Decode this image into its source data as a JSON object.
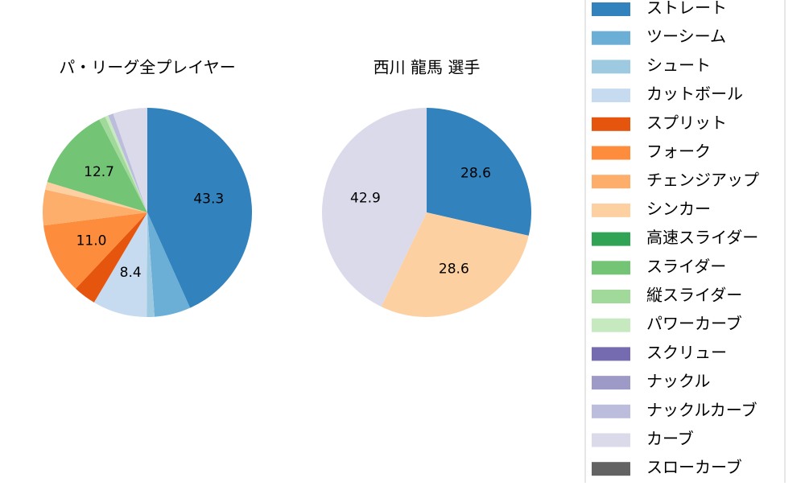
{
  "chart_data": [
    {
      "type": "pie",
      "title": "パ・リーグ全プレイヤー",
      "categories": [
        "ストレート",
        "ツーシーム",
        "シュート",
        "カットボール",
        "スプリット",
        "フォーク",
        "チェンジアップ",
        "シンカー",
        "高速スライダー",
        "スライダー",
        "縦スライダー",
        "パワーカーブ",
        "スクリュー",
        "ナックル",
        "ナックルカーブ",
        "カーブ",
        "スローカーブ"
      ],
      "colors": [
        "#3182bd",
        "#6baed6",
        "#9ecae1",
        "#c6dbef",
        "#e6550d",
        "#fd8d3c",
        "#fdae6b",
        "#fdd0a2",
        "#31a354",
        "#74c476",
        "#a1d99b",
        "#c7e9c0",
        "#756bb1",
        "#9e9ac8",
        "#bcbddc",
        "#dadaeb",
        "#636363"
      ],
      "values": [
        43.3,
        5.6,
        1.2,
        8.4,
        3.5,
        11.0,
        5.5,
        1.2,
        0,
        12.7,
        1.0,
        0.5,
        0,
        0,
        0.8,
        5.3,
        0
      ],
      "value_labels": [
        "43.3",
        null,
        null,
        "8.4",
        null,
        "11.0",
        null,
        null,
        null,
        "12.7",
        null,
        null,
        null,
        null,
        null,
        null,
        null
      ]
    },
    {
      "type": "pie",
      "title": "西川 龍馬  選手",
      "categories": [
        "ストレート",
        "ツーシーム",
        "シュート",
        "カットボール",
        "スプリット",
        "フォーク",
        "チェンジアップ",
        "シンカー",
        "高速スライダー",
        "スライダー",
        "縦スライダー",
        "パワーカーブ",
        "スクリュー",
        "ナックル",
        "ナックルカーブ",
        "カーブ",
        "スローカーブ"
      ],
      "colors": [
        "#3182bd",
        "#6baed6",
        "#9ecae1",
        "#c6dbef",
        "#e6550d",
        "#fd8d3c",
        "#fdae6b",
        "#fdd0a2",
        "#31a354",
        "#74c476",
        "#a1d99b",
        "#c7e9c0",
        "#756bb1",
        "#9e9ac8",
        "#bcbddc",
        "#dadaeb",
        "#636363"
      ],
      "values": [
        28.6,
        0,
        0,
        0,
        0,
        0,
        0,
        28.6,
        0,
        0,
        0,
        0,
        0,
        0,
        0,
        42.9,
        0
      ],
      "value_labels": [
        "28.6",
        null,
        null,
        null,
        null,
        null,
        null,
        "28.6",
        null,
        null,
        null,
        null,
        null,
        null,
        null,
        "42.9",
        null
      ]
    }
  ]
}
